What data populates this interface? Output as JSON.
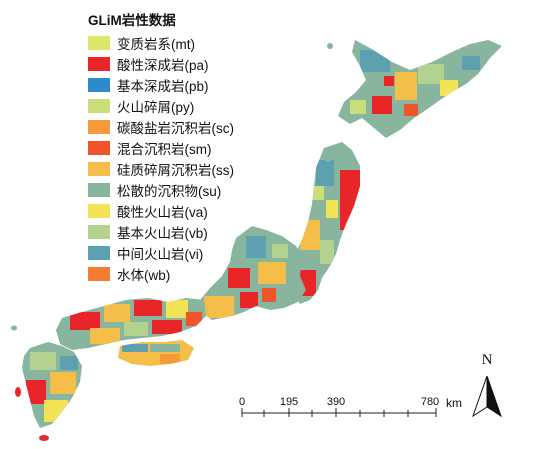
{
  "legend": {
    "title": "GLiM岩性数据",
    "items": [
      {
        "label": "变质岩系(mt)",
        "color": "#dde86a"
      },
      {
        "label": "酸性深成岩(pa)",
        "color": "#e8262a"
      },
      {
        "label": "基本深成岩(pb)",
        "color": "#2e8bc9"
      },
      {
        "label": "火山碎屑(py)",
        "color": "#c9de7a"
      },
      {
        "label": "碳酸盐岩沉积岩(sc)",
        "color": "#f39a3a"
      },
      {
        "label": "混合沉积岩(sm)",
        "color": "#f0542b"
      },
      {
        "label": "硅质碎屑沉积岩(ss)",
        "color": "#f5be48"
      },
      {
        "label": "松散的沉积物(su)",
        "color": "#87b59e"
      },
      {
        "label": "酸性火山岩(va)",
        "color": "#f3e356"
      },
      {
        "label": "基本火山岩(vb)",
        "color": "#b3d28f"
      },
      {
        "label": "中间火山岩(vi)",
        "color": "#5da0b0"
      },
      {
        "label": "水体(wb)",
        "color": "#f57d30"
      }
    ]
  },
  "scale_bar": {
    "ticks": [
      "0",
      "195",
      "390",
      "780"
    ],
    "unit": "km"
  },
  "north_arrow": {
    "label": "N"
  }
}
